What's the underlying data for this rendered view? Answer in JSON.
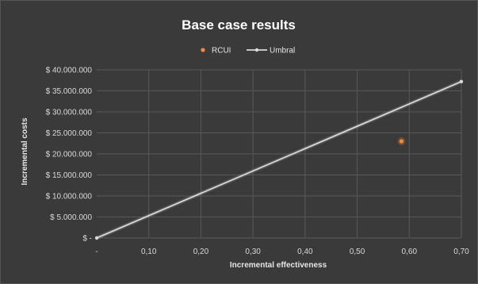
{
  "colors": {
    "background": "#3a3a3a",
    "gridline": "#595959",
    "rcui_marker": "#f28a3a",
    "umbral_line": "#d9d9d9",
    "text": "#e6e6e6"
  },
  "chart_data": {
    "type": "scatter",
    "title": "Base case results",
    "xlabel": "Incremental effectiveness",
    "ylabel": "Incremental costs",
    "xlim": [
      0,
      0.7
    ],
    "ylim": [
      0,
      40000000
    ],
    "x_ticks": [
      0,
      0.1,
      0.2,
      0.3,
      0.4,
      0.5,
      0.6,
      0.7
    ],
    "x_tick_labels": [
      "-",
      "0,10",
      "0,20",
      "0,30",
      "0,40",
      "0,50",
      "0,60",
      "0,70"
    ],
    "y_ticks": [
      0,
      5000000,
      10000000,
      15000000,
      20000000,
      25000000,
      30000000,
      35000000,
      40000000
    ],
    "y_tick_labels": [
      "$ -",
      "$ 5.000.000",
      "$ 10.000.000",
      "$ 15.000.000",
      "$ 20.000.000",
      "$ 25.000.000",
      "$ 30.000.000",
      "$ 35.000.000",
      "$ 40.000.000"
    ],
    "grid": true,
    "legend_position": "top-center",
    "series": [
      {
        "name": "RCUI",
        "kind": "scatter",
        "color": "#f28a3a",
        "points": [
          {
            "x": 0.585,
            "y": 23000000
          }
        ]
      },
      {
        "name": "Umbral",
        "kind": "line",
        "color": "#d9d9d9",
        "points": [
          {
            "x": 0,
            "y": 0
          },
          {
            "x": 0.7,
            "y": 37200000
          }
        ]
      }
    ]
  }
}
